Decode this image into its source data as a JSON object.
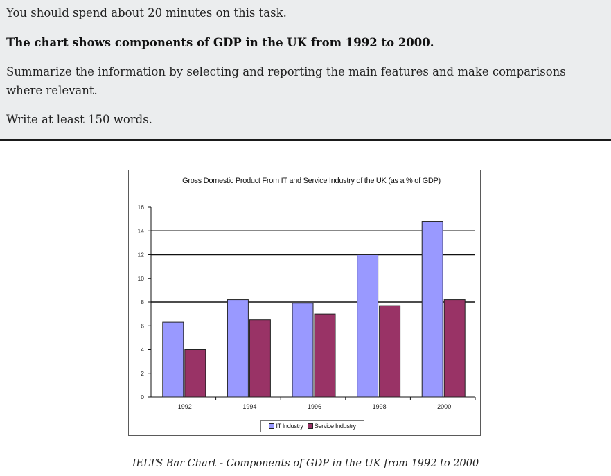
{
  "task": {
    "time_note": "You should spend about 20 minutes on this task.",
    "heading": "The chart shows components of GDP in the UK from 1992 to 2000.",
    "instruction": "Summarize the information by selecting and reporting the main features and make comparisons where relevant.",
    "word_count": "Write at least 150 words."
  },
  "caption": "IELTS Bar Chart - Components of GDP in the UK from 1992 to 2000",
  "colors": {
    "it_industry": "#9999ff",
    "service_industry": "#993366"
  },
  "chart_data": {
    "type": "bar",
    "title": "Gross Domestic Product From IT and Service Industry of the UK (as a % of GDP)",
    "categories": [
      "1992",
      "1994",
      "1996",
      "1998",
      "2000"
    ],
    "series": [
      {
        "name": "IT Industry",
        "values": [
          6.3,
          8.2,
          7.9,
          12.0,
          14.8
        ]
      },
      {
        "name": "Service Industry",
        "values": [
          4.0,
          6.5,
          7.0,
          7.7,
          8.2
        ]
      }
    ],
    "ylim": [
      0,
      16
    ],
    "yticks": [
      "0",
      "2",
      "4",
      "6",
      "8",
      "10",
      "12",
      "14",
      "16"
    ],
    "gridlines": [
      8,
      12,
      14
    ],
    "legend_position": "bottom"
  }
}
